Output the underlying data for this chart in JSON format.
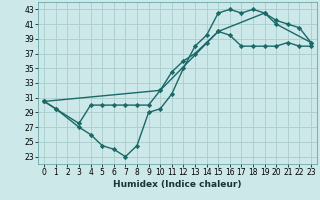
{
  "title": "",
  "xlabel": "Humidex (Indice chaleur)",
  "bg_color": "#cce8e8",
  "grid_color": "#aacccc",
  "line_color": "#1a6868",
  "xlim": [
    -0.5,
    23.5
  ],
  "ylim": [
    22,
    44
  ],
  "xticks": [
    0,
    1,
    2,
    3,
    4,
    5,
    6,
    7,
    8,
    9,
    10,
    11,
    12,
    13,
    14,
    15,
    16,
    17,
    18,
    19,
    20,
    21,
    22,
    23
  ],
  "yticks": [
    23,
    25,
    27,
    29,
    31,
    33,
    35,
    37,
    39,
    41,
    43
  ],
  "line1_x": [
    0,
    1,
    3,
    4,
    5,
    6,
    7,
    8,
    9,
    10,
    11,
    12,
    13,
    14,
    15,
    16,
    17,
    18,
    19,
    20,
    21,
    22,
    23
  ],
  "line1_y": [
    30.5,
    29.5,
    27,
    26,
    24.5,
    24,
    23,
    24.5,
    29,
    29.5,
    31.5,
    35,
    38,
    39.5,
    42.5,
    43,
    42.5,
    43,
    42.5,
    41.5,
    41,
    40.5,
    38.5
  ],
  "line2_x": [
    0,
    1,
    3,
    4,
    5,
    6,
    7,
    8,
    9,
    10,
    11,
    12,
    13,
    14,
    15,
    16,
    17,
    18,
    19,
    20,
    21,
    22,
    23
  ],
  "line2_y": [
    30.5,
    29.5,
    27.5,
    30,
    30,
    30,
    30,
    30,
    30,
    32,
    34.5,
    36,
    37,
    38.5,
    40,
    39.5,
    38,
    38,
    38,
    38,
    38.5,
    38,
    38
  ],
  "line3_x": [
    0,
    10,
    15,
    19,
    20,
    23
  ],
  "line3_y": [
    30.5,
    32,
    40,
    42.5,
    41,
    38.5
  ],
  "marker": "D",
  "marker_size": 2.2,
  "line_width": 1.0,
  "tick_labelsize": 5.5,
  "xlabel_fontsize": 6.5
}
